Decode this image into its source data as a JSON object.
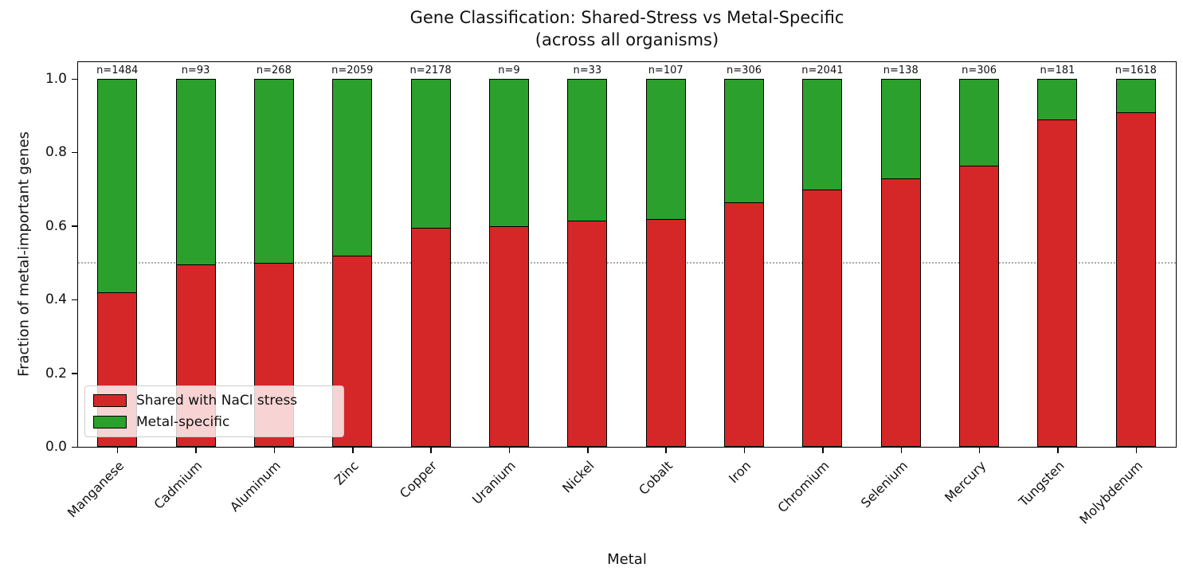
{
  "figure": {
    "title": "Gene Classification: Shared-Stress vs Metal-Specific",
    "subtitle": "(across all organisms)"
  },
  "chart_data": {
    "type": "bar",
    "stacked": true,
    "title": "Gene Classification: Shared-Stress vs Metal-Specific (across all organisms)",
    "xlabel": "Metal",
    "ylabel": "Fraction of metal-important genes",
    "categories": [
      "Manganese",
      "Cadmium",
      "Aluminum",
      "Zinc",
      "Copper",
      "Uranium",
      "Nickel",
      "Cobalt",
      "Iron",
      "Chromium",
      "Selenium",
      "Mercury",
      "Tungsten",
      "Molybdenum"
    ],
    "series": [
      {
        "name": "Shared with NaCl stress",
        "color": "#d62728",
        "values": [
          0.42,
          0.495,
          0.5,
          0.52,
          0.595,
          0.6,
          0.615,
          0.62,
          0.665,
          0.7,
          0.73,
          0.765,
          0.89,
          0.91
        ]
      },
      {
        "name": "Metal-specific",
        "color": "#2ca02c",
        "values": [
          0.58,
          0.505,
          0.5,
          0.48,
          0.405,
          0.4,
          0.385,
          0.38,
          0.335,
          0.3,
          0.27,
          0.235,
          0.11,
          0.09
        ]
      }
    ],
    "bar_labels": [
      "n=1484",
      "n=93",
      "n=268",
      "n=2059",
      "n=2178",
      "n=9",
      "n=33",
      "n=107",
      "n=306",
      "n=2041",
      "n=138",
      "n=306",
      "n=181",
      "n=1618"
    ],
    "ylim": [
      0,
      1.05
    ],
    "yticks": [
      "0.0",
      "0.2",
      "0.4",
      "0.6",
      "0.8",
      "1.0"
    ],
    "ytick_values": [
      0,
      0.2,
      0.4,
      0.6,
      0.8,
      1.0
    ],
    "grid": false,
    "reference_line": {
      "y": 0.5,
      "style": "dotted",
      "color": "#ababab"
    },
    "legend": {
      "position": "lower left"
    },
    "bar_edge_color": "#000000",
    "background": "#ffffff"
  }
}
